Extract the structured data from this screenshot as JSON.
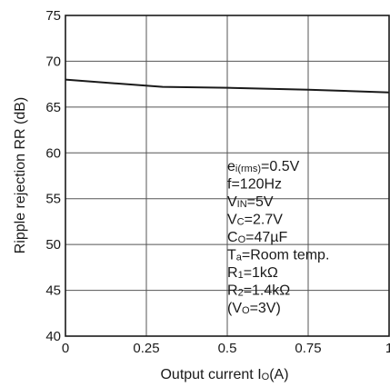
{
  "chart_data": {
    "type": "line",
    "xlabel": "Output current I",
    "xlabel_sub": "O",
    "xlabel_unit": "(A)",
    "ylabel": "Ripple rejection RR (dB)",
    "xlim": [
      0,
      1
    ],
    "ylim": [
      40,
      75
    ],
    "x_ticks": [
      0,
      0.25,
      0.5,
      0.75,
      1
    ],
    "x_tick_labels": [
      "0",
      "0.25",
      "0.5",
      "0.75",
      "1"
    ],
    "y_ticks": [
      40,
      45,
      50,
      55,
      60,
      65,
      70,
      75
    ],
    "y_tick_labels": [
      "40",
      "45",
      "50",
      "55",
      "60",
      "65",
      "70",
      "75"
    ],
    "grid": true,
    "series": [
      {
        "x": [
          0,
          0.3,
          0.5,
          0.75,
          1.0
        ],
        "y": [
          68.0,
          67.2,
          67.1,
          66.9,
          66.6
        ]
      }
    ],
    "annotations": [
      {
        "main": "e",
        "sub": "i(rms)",
        "rest": "=0.5V"
      },
      {
        "main": "f=120Hz",
        "sub": "",
        "rest": ""
      },
      {
        "main": "V",
        "sub": "IN",
        "rest": "=5V"
      },
      {
        "main": "V",
        "sub": "C",
        "rest": "=2.7V"
      },
      {
        "main": "C",
        "sub": "O",
        "rest": "=47µF"
      },
      {
        "main": "T",
        "sub": "a",
        "rest": "=Room temp."
      },
      {
        "main": "R",
        "sub": "1",
        "rest": "=1kΩ"
      },
      {
        "main": "R",
        "sub": "2",
        "rest": "=1.4kΩ"
      },
      {
        "main": "(V",
        "sub": "O",
        "rest": "=3V)"
      }
    ]
  }
}
